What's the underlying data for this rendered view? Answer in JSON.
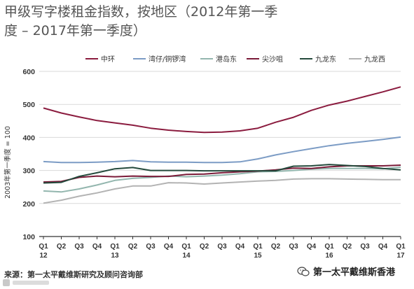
{
  "title": {
    "line1": "甲级写字楼租金指数，按地区（2012年第一季",
    "line2": "度 – 2017年第一季度）"
  },
  "footer": {
    "source": "来源：第一太平戴维斯研究及顾问咨询部",
    "brand": "第一太平戴维斯香港"
  },
  "colors": {
    "central": "#8b1c3f",
    "wanchai": "#7c9cc5",
    "island_east": "#93b6ae",
    "tst": "#7a1a38",
    "kowloon_east": "#244a3c",
    "kowloon_west": "#b3b3b3",
    "grid": "#d9d9d9",
    "axis": "#333333"
  },
  "chart_data": {
    "type": "line",
    "title": "甲级写字楼租金指数，按地区（2012年第一季度 – 2017年第一季度）",
    "ylabel": "2003年第一季度 = 100",
    "xlabel": "",
    "ylim": [
      100,
      600
    ],
    "yticks": [
      100,
      200,
      300,
      400,
      500,
      600
    ],
    "grid": true,
    "legend_position": "top",
    "categories": [
      "Q1 12",
      "Q2",
      "Q3",
      "Q4",
      "Q1 13",
      "Q2",
      "Q3",
      "Q4",
      "Q1 14",
      "Q2",
      "Q3",
      "Q4",
      "Q1 15",
      "Q2",
      "Q3",
      "Q4",
      "Q1 16",
      "Q2",
      "Q3",
      "Q4",
      "Q1 17"
    ],
    "quarter_labels": [
      "Q1",
      "Q2",
      "Q3",
      "Q4",
      "Q1",
      "Q2",
      "Q3",
      "Q4",
      "Q1",
      "Q2",
      "Q3",
      "Q4",
      "Q1",
      "Q2",
      "Q3",
      "Q4",
      "Q1",
      "Q2",
      "Q3",
      "Q4",
      "Q1"
    ],
    "year_labels": [
      {
        "index": 0,
        "label": "12"
      },
      {
        "index": 4,
        "label": "13"
      },
      {
        "index": 8,
        "label": "14"
      },
      {
        "index": 12,
        "label": "15"
      },
      {
        "index": 16,
        "label": "16"
      },
      {
        "index": 20,
        "label": "17"
      }
    ],
    "series": [
      {
        "name": "中环",
        "color_key": "central",
        "values": [
          489,
          474,
          462,
          451,
          444,
          437,
          428,
          422,
          418,
          415,
          416,
          420,
          428,
          446,
          461,
          482,
          498,
          510,
          524,
          538,
          553
        ]
      },
      {
        "name": "湾仔/铜锣湾",
        "color_key": "wanchai",
        "values": [
          327,
          324,
          324,
          325,
          327,
          330,
          326,
          325,
          325,
          324,
          324,
          326,
          335,
          347,
          357,
          366,
          375,
          382,
          388,
          394,
          401
        ]
      },
      {
        "name": "港岛东",
        "color_key": "island_east",
        "values": [
          238,
          235,
          244,
          256,
          270,
          276,
          279,
          283,
          281,
          283,
          286,
          290,
          296,
          297,
          300,
          304,
          306,
          306,
          306,
          305,
          310
        ]
      },
      {
        "name": "尖沙咀",
        "color_key": "tst",
        "values": [
          265,
          267,
          279,
          283,
          281,
          283,
          282,
          282,
          288,
          289,
          293,
          296,
          298,
          302,
          307,
          306,
          311,
          314,
          314,
          314,
          316
        ]
      },
      {
        "name": "九龙东",
        "color_key": "kowloon_east",
        "values": [
          262,
          264,
          282,
          293,
          305,
          309,
          300,
          300,
          300,
          299,
          299,
          299,
          299,
          299,
          313,
          314,
          318,
          315,
          312,
          306,
          302
        ]
      },
      {
        "name": "九龙西",
        "color_key": "kowloon_west",
        "values": [
          201,
          210,
          222,
          232,
          244,
          253,
          253,
          263,
          262,
          259,
          262,
          265,
          268,
          270,
          274,
          275,
          275,
          274,
          273,
          272,
          272
        ]
      }
    ]
  }
}
